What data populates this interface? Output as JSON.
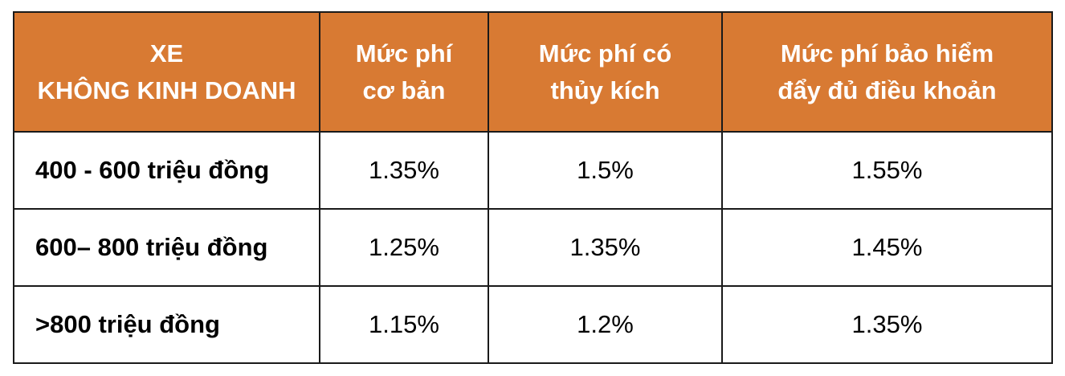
{
  "colors": {
    "header_background": "#d87a33",
    "header_text": "#ffffff",
    "border": "#1a1a1a"
  },
  "table": {
    "headers": [
      {
        "line1": "XE",
        "line2": "KHÔNG KINH DOANH"
      },
      {
        "line1": "Mức phí",
        "line2": "cơ bản"
      },
      {
        "line1": "Mức phí có",
        "line2": "thủy kích"
      },
      {
        "line1": "Mức phí bảo hiểm",
        "line2": "đẩy đủ điều khoản"
      }
    ],
    "rows": [
      {
        "label": "400 - 600 triệu đồng",
        "values": [
          "1.35%",
          "1.5%",
          "1.55%"
        ]
      },
      {
        "label": "600– 800 triệu đồng",
        "values": [
          "1.25%",
          "1.35%",
          "1.45%"
        ]
      },
      {
        "label": ">800 triệu đồng",
        "values": [
          "1.15%",
          "1.2%",
          "1.35%"
        ]
      }
    ]
  }
}
